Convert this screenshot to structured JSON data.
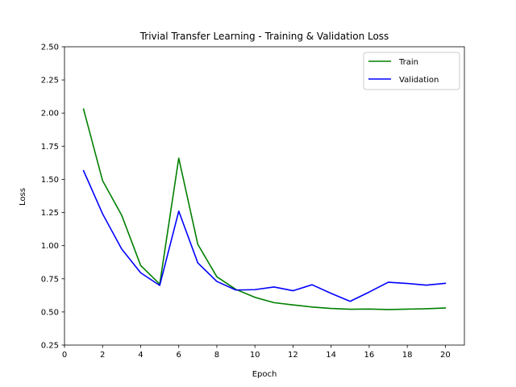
{
  "chart_data": {
    "type": "line",
    "title": "Trivial Transfer Learning - Training & Validation Loss",
    "xlabel": "Epoch",
    "ylabel": "Loss",
    "xlim": [
      0,
      21
    ],
    "ylim": [
      0.25,
      2.5
    ],
    "xticks": [
      0,
      2,
      4,
      6,
      8,
      10,
      12,
      14,
      16,
      18,
      20
    ],
    "yticks": [
      0.25,
      0.5,
      0.75,
      1.0,
      1.25,
      1.5,
      1.75,
      2.0,
      2.25,
      2.5
    ],
    "ytick_labels": [
      "0.25",
      "0.50",
      "0.75",
      "1.00",
      "1.25",
      "1.50",
      "1.75",
      "2.00",
      "2.25",
      "2.50"
    ],
    "x": [
      1,
      2,
      3,
      4,
      5,
      6,
      7,
      8,
      9,
      10,
      11,
      12,
      13,
      14,
      15,
      16,
      17,
      18,
      19,
      20
    ],
    "series": [
      {
        "name": "Train",
        "color": "#008000",
        "values": [
          2.03,
          1.49,
          1.23,
          0.85,
          0.71,
          1.66,
          1.01,
          0.765,
          0.67,
          0.61,
          0.57,
          0.553,
          0.537,
          0.526,
          0.52,
          0.522,
          0.518,
          0.521,
          0.524,
          0.53
        ]
      },
      {
        "name": "Validation",
        "color": "#0000ff",
        "values": [
          1.565,
          1.24,
          0.975,
          0.795,
          0.7,
          1.26,
          0.87,
          0.73,
          0.665,
          0.668,
          0.688,
          0.66,
          0.705,
          0.64,
          0.58,
          0.65,
          0.724,
          0.715,
          0.702,
          0.716
        ]
      }
    ],
    "legend_position": "top-right",
    "grid": false
  }
}
